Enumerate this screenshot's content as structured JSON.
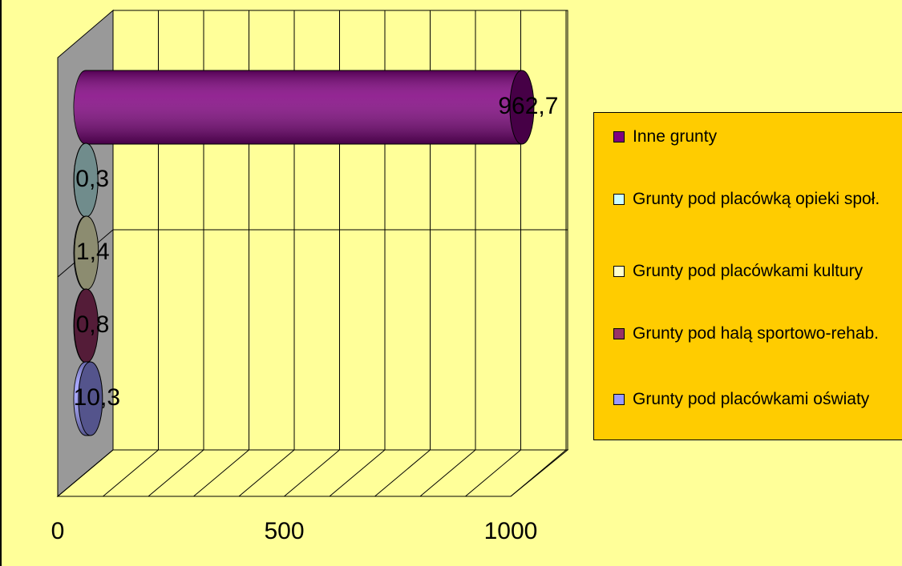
{
  "chart_data": {
    "type": "bar",
    "orientation": "horizontal",
    "categories": [
      null
    ],
    "series": [
      {
        "name": "Inne grunty",
        "color": "#800080",
        "values": [
          962.7
        ],
        "value_labels": [
          "962,7"
        ]
      },
      {
        "name": "Grunty pod placówką opieki społ.",
        "color": "#ccffff",
        "values": [
          0.3
        ],
        "value_labels": [
          "0,3"
        ]
      },
      {
        "name": "Grunty pod placówkami kultury",
        "color": "#ffffcc",
        "values": [
          1.4
        ],
        "value_labels": [
          "1,4"
        ]
      },
      {
        "name": "Grunty pod halą sportowo-rehab.",
        "color": "#993366",
        "values": [
          0.8
        ],
        "value_labels": [
          "0,8"
        ]
      },
      {
        "name": "Grunty pod placówkami oświaty",
        "color": "#9999ff",
        "values": [
          10.3
        ],
        "value_labels": [
          "10,3"
        ]
      }
    ],
    "xlim": [
      0,
      1000
    ],
    "xticks": [
      0,
      500,
      1000
    ],
    "x_minor_gridlines": [
      100,
      200,
      300,
      400,
      600,
      700,
      800,
      900
    ],
    "grid": true,
    "legend": "right"
  }
}
